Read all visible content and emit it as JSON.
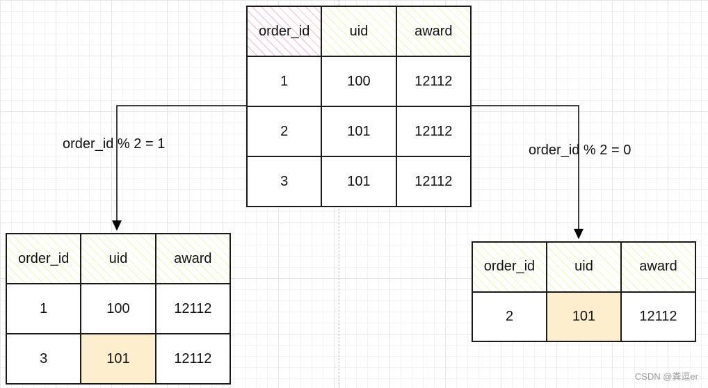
{
  "tables": {
    "main": {
      "headers": [
        "order_id",
        "uid",
        "award"
      ],
      "rows": [
        [
          "1",
          "100",
          "12112"
        ],
        [
          "2",
          "101",
          "12112"
        ],
        [
          "3",
          "101",
          "12112"
        ]
      ]
    },
    "left": {
      "headers": [
        "order_id",
        "uid",
        "award"
      ],
      "rows": [
        [
          "1",
          "100",
          "12112"
        ],
        [
          "3",
          "101",
          "12112"
        ]
      ]
    },
    "right": {
      "headers": [
        "order_id",
        "uid",
        "award"
      ],
      "rows": [
        [
          "2",
          "101",
          "12112"
        ]
      ]
    }
  },
  "edges": {
    "left_label": "order_id % 2 = 1",
    "right_label": "order_id % 2 = 0"
  },
  "colors": {
    "highlight": "#fdeecd",
    "header_hatch": "#e4ec78",
    "key_hatch": "#ee96aa",
    "line": "#000000"
  },
  "watermark": "CSDN @粪逗er"
}
